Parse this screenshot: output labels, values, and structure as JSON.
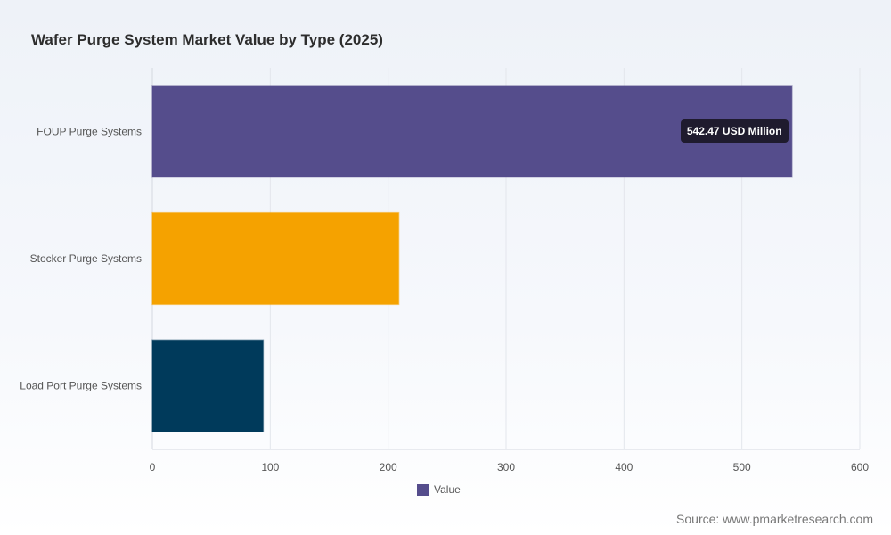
{
  "page": {
    "title": "Wafer Purge System Market Value by Type (2025)",
    "source": "Source: www.pmarketresearch.com",
    "legend_label": "Value",
    "tooltip": "542.47 USD Million"
  },
  "chart_data": {
    "type": "bar",
    "orientation": "horizontal",
    "title": "Wafer Purge System Market Value by Type (2025)",
    "categories": [
      "FOUP Purge Systems",
      "Stocker Purge Systems",
      "Load Port Purge Systems"
    ],
    "values": [
      542.47,
      209,
      94
    ],
    "colors": [
      "#554d8c",
      "#f5a200",
      "#003a5b"
    ],
    "series": [
      {
        "name": "Value",
        "values": [
          542.47,
          209,
          94
        ]
      }
    ],
    "xlim": [
      0,
      600
    ],
    "xticks": [
      0,
      100,
      200,
      300,
      400,
      500,
      600
    ],
    "grid": true,
    "legend": "bottom-center",
    "unit": "USD Million"
  }
}
